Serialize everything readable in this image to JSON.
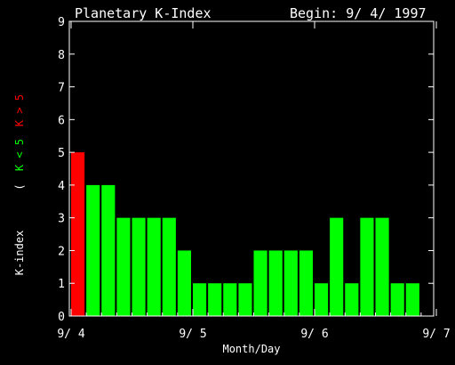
{
  "colors": {
    "background": "#000000",
    "foreground": "#ffffff",
    "quiet": "#00ff00",
    "storm": "#ff0000"
  },
  "chart_data": {
    "type": "bar",
    "title": "Planetary K-Index",
    "begin_label": "Begin: 9/ 4/ 1997",
    "xlabel": "Month/Day",
    "ylabel": "K-index",
    "legend_open": "(",
    "legend_green": "K < 5",
    "legend_red": "K > 5",
    "ylim": [
      0,
      9
    ],
    "yticks": [
      "0",
      "1",
      "2",
      "3",
      "4",
      "5",
      "6",
      "7",
      "8",
      "9"
    ],
    "xticks": [
      "9/ 4",
      "9/ 5",
      "9/ 6",
      "9/ 7"
    ],
    "bars_per_day": 8,
    "values": [
      5,
      4,
      4,
      3,
      3,
      3,
      3,
      2,
      1,
      1,
      1,
      1,
      2,
      2,
      2,
      2,
      1,
      3,
      1,
      3,
      3,
      1,
      1
    ],
    "bar_colors": [
      "red",
      "green",
      "green",
      "green",
      "green",
      "green",
      "green",
      "green",
      "green",
      "green",
      "green",
      "green",
      "green",
      "green",
      "green",
      "green",
      "green",
      "green",
      "green",
      "green",
      "green",
      "green",
      "green"
    ]
  }
}
